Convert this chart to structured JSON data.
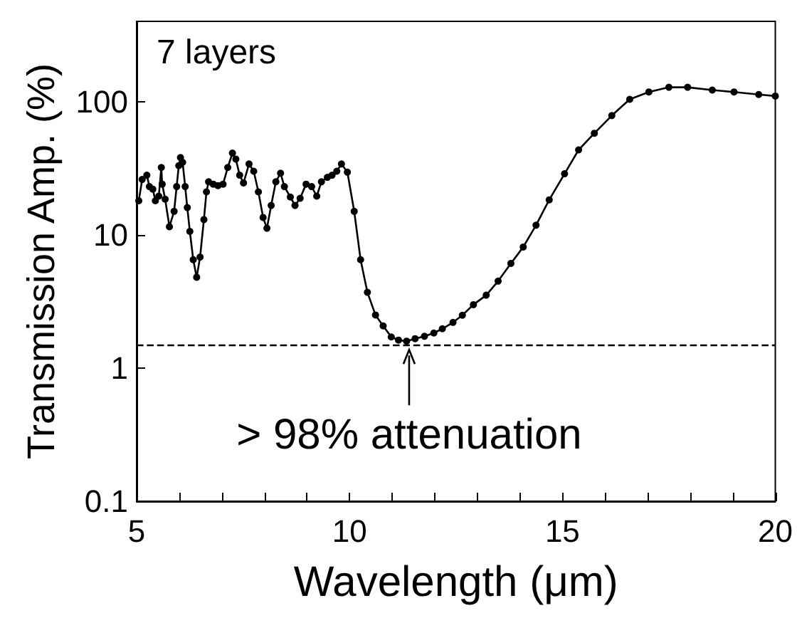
{
  "chart_data": {
    "type": "line",
    "xlabel": "Wavelength (μm)",
    "ylabel": "Transmission Amp. (%)",
    "log": "y",
    "grid": false,
    "marker": "circle",
    "line_style": "solid",
    "xlim": [
      5,
      20
    ],
    "xticks": [
      5,
      {
        "value": 6,
        "label": null
      },
      {
        "value": 7,
        "label": null
      },
      {
        "value": 8,
        "label": null
      },
      {
        "value": 9,
        "label": null
      },
      10,
      {
        "value": 11,
        "label": null
      },
      {
        "value": 12,
        "label": null
      },
      {
        "value": 13,
        "label": null
      },
      {
        "value": 14,
        "label": null
      },
      15,
      {
        "value": 16,
        "label": null
      },
      {
        "value": 17,
        "label": null
      },
      {
        "value": 18,
        "label": null
      },
      {
        "value": 19,
        "label": null
      },
      20
    ],
    "ylim": [
      0.1,
      400
    ],
    "yticks": [
      0.1,
      1,
      10,
      100
    ],
    "ref_lines": [
      {
        "axis": "y",
        "value": 1.5,
        "line_style": "dashed",
        "color": "#000000"
      }
    ],
    "annotations": [
      "7 layers",
      {
        "text": "> 98% attenuation",
        "x": 11.4,
        "y": 1.59
      }
    ],
    "series": [
      {
        "color": "#000000",
        "x": [
          5.05,
          5.13,
          5.24,
          5.3,
          5.38,
          5.44,
          5.52,
          5.58,
          5.6,
          5.67,
          5.77,
          5.88,
          5.94,
          5.99,
          6.03,
          6.08,
          6.14,
          6.19,
          6.25,
          6.33,
          6.41,
          6.49,
          6.58,
          6.64,
          6.69,
          6.8,
          6.91,
          7.03,
          7.14,
          7.25,
          7.33,
          7.42,
          7.51,
          7.64,
          7.75,
          7.86,
          7.97,
          8.06,
          8.16,
          8.27,
          8.38,
          8.47,
          8.61,
          8.72,
          8.84,
          8.98,
          9.11,
          9.23,
          9.34,
          9.48,
          9.59,
          9.7,
          9.81,
          9.95,
          10.11,
          10.26,
          10.42,
          10.61,
          10.79,
          10.98,
          11.15,
          11.34,
          11.54,
          11.76,
          11.98,
          12.18,
          12.43,
          12.65,
          12.91,
          13.21,
          13.49,
          13.79,
          14.08,
          14.38,
          14.69,
          15.05,
          15.38,
          15.75,
          16.16,
          16.58,
          17.03,
          17.5,
          17.94,
          18.52,
          19.03,
          19.61,
          20
        ],
        "values": [
          18,
          26,
          28,
          23,
          22,
          18,
          19.5,
          32,
          24,
          18.5,
          11.5,
          15,
          23,
          33,
          38,
          35,
          23,
          16,
          10.6,
          6.5,
          4.8,
          6.8,
          13,
          21,
          25,
          24,
          23.4,
          24,
          32,
          41,
          37,
          28,
          24.5,
          34,
          30,
          21,
          13.5,
          11.2,
          16.6,
          25,
          29,
          23,
          19.2,
          16.6,
          18.8,
          24,
          23,
          19.5,
          25,
          27,
          28,
          30,
          34,
          29.5,
          15,
          6.5,
          3.7,
          2.5,
          2.07,
          1.71,
          1.62,
          1.59,
          1.66,
          1.73,
          1.83,
          1.97,
          2.2,
          2.49,
          2.99,
          3.52,
          4.49,
          6.1,
          8.1,
          11.8,
          18.3,
          28.7,
          43.4,
          57.8,
          78.5,
          104,
          118,
          128,
          128,
          122,
          118,
          113,
          110
        ]
      }
    ]
  }
}
